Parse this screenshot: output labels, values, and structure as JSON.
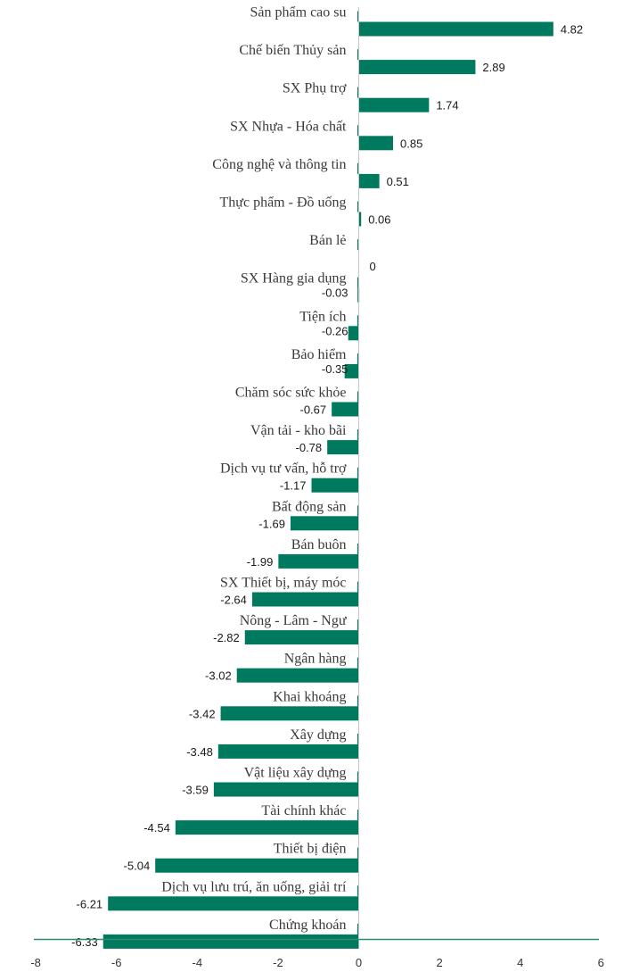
{
  "chart_data": {
    "type": "bar",
    "orientation": "horizontal",
    "categories": [
      "Sản phẩm cao su",
      "Chế biến Thủy sản",
      "SX Phụ trợ",
      "SX Nhựa - Hóa chất",
      "Công nghệ và thông tin",
      "Thực phẩm - Đồ uống",
      "Bán lẻ",
      "SX Hàng gia dụng",
      "Tiện ích",
      "Bảo hiểm",
      "Chăm sóc sức khỏe",
      "Vận tải - kho bãi",
      "Dịch vụ tư vấn, hỗ trợ",
      "Bất động sản",
      "Bán buôn",
      "SX Thiết bị, máy móc",
      "Nông - Lâm - Ngư",
      "Ngân hàng",
      "Khai khoáng",
      "Xây dựng",
      "Vật liệu xây dựng",
      "Tài chính khác",
      "Thiết bị điện",
      "Dịch vụ lưu trú, ăn uống, giải trí",
      "Chứng khoán"
    ],
    "values": [
      4.82,
      2.89,
      1.74,
      0.85,
      0.51,
      0.06,
      0,
      -0.03,
      -0.26,
      -0.35,
      -0.67,
      -0.78,
      -1.17,
      -1.69,
      -1.99,
      -2.64,
      -2.82,
      -3.02,
      -3.42,
      -3.48,
      -3.59,
      -4.54,
      -5.04,
      -6.21,
      -6.33
    ],
    "value_labels": [
      "4.82",
      "2.89",
      "1.74",
      "0.85",
      "0.51",
      "0.06",
      "0",
      "-0.03",
      "-0.26",
      "-0.35",
      "-0.67",
      "-0.78",
      "-1.17",
      "-1.69",
      "-1.99",
      "-2.64",
      "-2.82",
      "-3.02",
      "-3.42",
      "-3.48",
      "-3.59",
      "-4.54",
      "-5.04",
      "-6.21",
      "-6.33"
    ],
    "xlim": [
      -8,
      6
    ],
    "x_ticks": [
      "-8",
      "-6",
      "-4",
      "-2",
      "0",
      "2",
      "4",
      "6"
    ],
    "title": "",
    "xlabel": "",
    "ylabel": "",
    "grid": false,
    "bar_color": "#007a5e",
    "axis_color": "#2e8b6e"
  }
}
